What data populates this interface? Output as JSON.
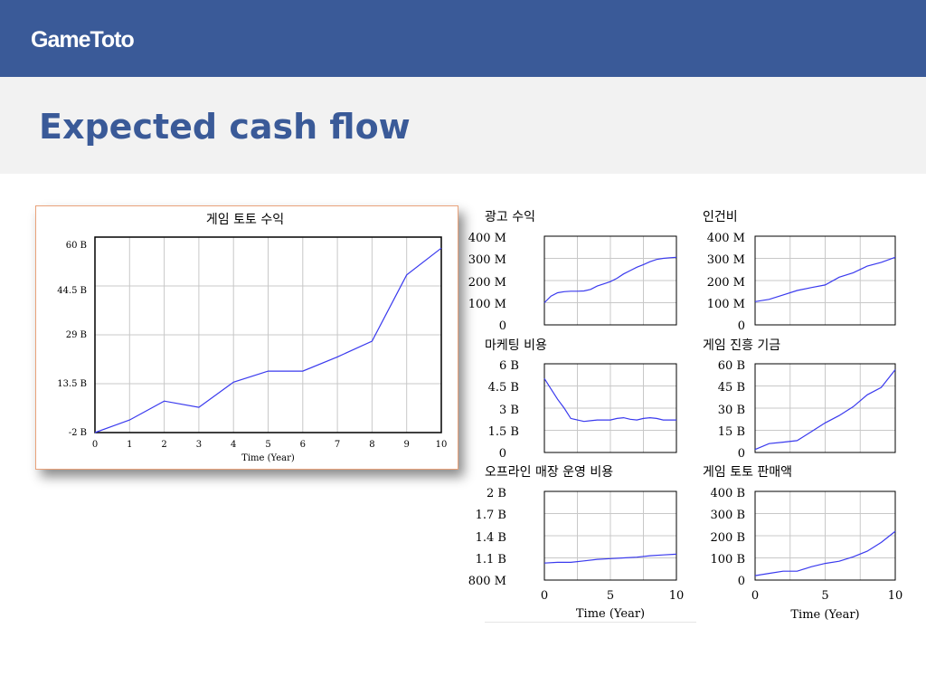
{
  "header": {
    "brand": "GameToto"
  },
  "slide": {
    "title": "Expected cash flow"
  },
  "colors": {
    "bar": "#3a5a98",
    "line": "#3a3aee",
    "grid": "#c8c8c8"
  },
  "charts": {
    "big": {
      "title": "게임 토토 수익",
      "yticks": [
        "-2 B",
        "13.5 B",
        "29 B",
        "44.5 B",
        "60 B"
      ],
      "xticks": [
        "0",
        "1",
        "2",
        "3",
        "4",
        "5",
        "6",
        "7",
        "8",
        "9",
        "10"
      ],
      "xlabel": "Time (Year)"
    },
    "adv": {
      "title": "광고 수익",
      "yticks": [
        "0",
        "100 M",
        "200 M",
        "300 M",
        "400 M"
      ]
    },
    "labor": {
      "title": "인건비",
      "yticks": [
        "0",
        "100 M",
        "200 M",
        "300 M",
        "400 M"
      ]
    },
    "mkt": {
      "title": "마케팅 비용",
      "yticks": [
        "0",
        "1.5 B",
        "3 B",
        "4.5 B",
        "6 B"
      ]
    },
    "fund": {
      "title": "게임 진흥 기금",
      "yticks": [
        "0",
        "15 B",
        "30 B",
        "45 B",
        "60 B"
      ]
    },
    "offline": {
      "title": "오프라인 매장 운영 비용",
      "yticks": [
        "800 M",
        "1.1 B",
        "1.4 B",
        "1.7 B",
        "2 B"
      ],
      "xticks": [
        "0",
        "5",
        "10"
      ],
      "xlabel": "Time (Year)"
    },
    "sales": {
      "title": "게임 토토 판매액",
      "yticks": [
        "0",
        "100 B",
        "200 B",
        "300 B",
        "400 B"
      ],
      "xticks": [
        "0",
        "5",
        "10"
      ],
      "xlabel": "Time (Year)"
    }
  },
  "chart_data": [
    {
      "type": "line",
      "title": "게임 토토 수익",
      "xlabel": "Time (Year)",
      "ylabel": "",
      "xlim": [
        0,
        10
      ],
      "ylim": [
        -2,
        60
      ],
      "series": [
        {
          "x": [
            0,
            1,
            2,
            3,
            4,
            5,
            6,
            7,
            8,
            9,
            10
          ],
          "y": [
            -2,
            2,
            8,
            6,
            14,
            17.5,
            17.5,
            22,
            27,
            48,
            56.5
          ]
        }
      ]
    },
    {
      "type": "line",
      "title": "광고 수익",
      "xlim": [
        0,
        10
      ],
      "ylim": [
        0,
        400
      ],
      "series": [
        {
          "x": [
            0,
            0.5,
            1,
            1.5,
            2,
            2.5,
            3,
            3.5,
            4,
            4.5,
            5,
            5.5,
            6,
            6.5,
            7,
            7.5,
            8,
            8.5,
            9,
            9.5,
            10
          ],
          "y": [
            100,
            130,
            145,
            150,
            152,
            152,
            153,
            160,
            175,
            185,
            195,
            210,
            230,
            245,
            260,
            272,
            285,
            295,
            300,
            303,
            305
          ]
        }
      ]
    },
    {
      "type": "line",
      "title": "인건비",
      "xlim": [
        0,
        10
      ],
      "ylim": [
        0,
        400
      ],
      "series": [
        {
          "x": [
            0,
            1,
            2,
            3,
            4,
            5,
            6,
            7,
            8,
            9,
            10
          ],
          "y": [
            105,
            115,
            135,
            155,
            168,
            180,
            215,
            235,
            265,
            282,
            305
          ]
        }
      ]
    },
    {
      "type": "line",
      "title": "마케팅 비용",
      "xlim": [
        0,
        10
      ],
      "ylim": [
        0,
        6
      ],
      "series": [
        {
          "x": [
            0,
            0.5,
            1,
            1.5,
            2,
            2.5,
            3,
            3.5,
            4,
            4.5,
            5,
            5.5,
            6,
            6.5,
            7,
            7.5,
            8,
            8.5,
            9,
            9.5,
            10
          ],
          "y": [
            5.0,
            4.3,
            3.6,
            3.0,
            2.3,
            2.2,
            2.1,
            2.15,
            2.2,
            2.2,
            2.2,
            2.3,
            2.35,
            2.25,
            2.2,
            2.3,
            2.35,
            2.3,
            2.2,
            2.2,
            2.2
          ]
        }
      ]
    },
    {
      "type": "line",
      "title": "게임 진흥 기금",
      "xlim": [
        0,
        10
      ],
      "ylim": [
        0,
        60
      ],
      "series": [
        {
          "x": [
            0,
            1,
            2,
            3,
            4,
            5,
            6,
            7,
            8,
            9,
            10
          ],
          "y": [
            2,
            6,
            7,
            8,
            14,
            20,
            25,
            31,
            39,
            44,
            56
          ]
        }
      ]
    },
    {
      "type": "line",
      "title": "오프라인 매장 운영 비용",
      "xlabel": "Time (Year)",
      "xlim": [
        0,
        10
      ],
      "ylim": [
        0.8,
        2.0
      ],
      "series": [
        {
          "x": [
            0,
            1,
            2,
            3,
            4,
            5,
            6,
            7,
            8,
            9,
            10
          ],
          "y": [
            1.03,
            1.04,
            1.04,
            1.06,
            1.08,
            1.09,
            1.1,
            1.11,
            1.13,
            1.14,
            1.15
          ]
        }
      ]
    },
    {
      "type": "line",
      "title": "게임 토토 판매액",
      "xlabel": "Time (Year)",
      "xlim": [
        0,
        10
      ],
      "ylim": [
        0,
        400
      ],
      "series": [
        {
          "x": [
            0,
            1,
            2,
            3,
            4,
            5,
            6,
            7,
            8,
            9,
            10
          ],
          "y": [
            20,
            30,
            40,
            40,
            60,
            75,
            85,
            105,
            130,
            170,
            220
          ]
        }
      ]
    }
  ]
}
